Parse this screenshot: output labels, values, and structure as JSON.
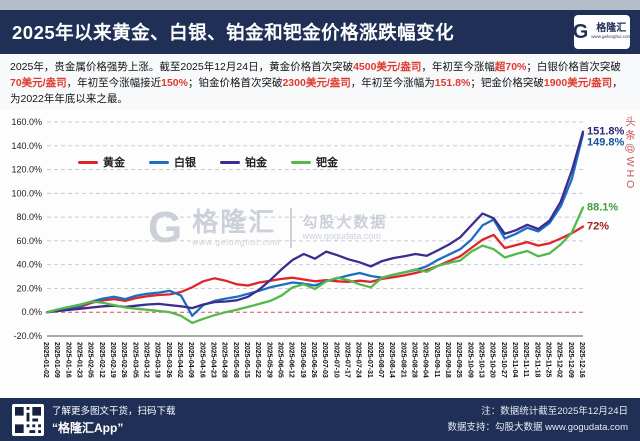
{
  "header": {
    "title": "2025年以来黄金、白银、铂金和钯金价格涨跌幅变化",
    "logo": {
      "letter": "G",
      "name": "格隆汇",
      "site": "www.gelonghui.com"
    }
  },
  "description": {
    "segments": [
      {
        "text": "2025年，贵金属价格强势上涨。截至2025年12月24日，黄金价格首次突破",
        "highlight": false
      },
      {
        "text": "4500美元/盎司",
        "highlight": true
      },
      {
        "text": "，年初至今涨幅",
        "highlight": false
      },
      {
        "text": "超70%",
        "highlight": true
      },
      {
        "text": "；白银价格首次突破",
        "highlight": false
      },
      {
        "text": "70美元/盎司",
        "highlight": true
      },
      {
        "text": "，年初至今涨幅接近",
        "highlight": false
      },
      {
        "text": "150%",
        "highlight": true
      },
      {
        "text": "；铂金价格首次突破",
        "highlight": false
      },
      {
        "text": "2300美元/盎司",
        "highlight": true
      },
      {
        "text": "，年初至今涨幅为",
        "highlight": false
      },
      {
        "text": "151.8%",
        "highlight": true
      },
      {
        "text": "；钯金价格突破",
        "highlight": false
      },
      {
        "text": "1900美元/盎司",
        "highlight": true
      },
      {
        "text": "，为2022年年底以来之最。",
        "highlight": false
      }
    ]
  },
  "chart_data": {
    "type": "line",
    "title": "",
    "xlabel": "",
    "ylabel": "",
    "ylim": [
      -20,
      160
    ],
    "yticks": [
      -20,
      0,
      20,
      40,
      60,
      80,
      100,
      120,
      140,
      160
    ],
    "ytick_suffix": "%",
    "grid": "horizontal dashed",
    "zero_line": "dashed red",
    "zero_line_color": "#d05555",
    "legend_position": "top-left inside",
    "categories": [
      "2025-01-02",
      "2025-01-09",
      "2025-01-16",
      "2025-01-23",
      "2025-02-05",
      "2025-02-12",
      "2025-02-19",
      "2025-02-26",
      "2025-03-05",
      "2025-03-12",
      "2025-03-19",
      "2025-03-26",
      "2025-04-02",
      "2025-04-09",
      "2025-04-16",
      "2025-04-23",
      "2025-04-28",
      "2025-05-08",
      "2025-05-15",
      "2025-05-22",
      "2025-05-29",
      "2025-06-05",
      "2025-06-12",
      "2025-06-19",
      "2025-06-26",
      "2025-07-03",
      "2025-07-10",
      "2025-07-17",
      "2025-07-24",
      "2025-07-31",
      "2025-08-07",
      "2025-08-14",
      "2025-08-21",
      "2025-08-28",
      "2025-09-04",
      "2025-09-11",
      "2025-09-18",
      "2025-09-25",
      "2025-10-09",
      "2025-10-13",
      "2025-10-20",
      "2025-10-27",
      "2025-11-04",
      "2025-11-11",
      "2025-11-18",
      "2025-11-25",
      "2025-12-02",
      "2025-12-09",
      "2025-12-16"
    ],
    "series": [
      {
        "name": "黄金",
        "color": "#e02428",
        "values": [
          0,
          1.5,
          3,
          4.5,
          8,
          10,
          11,
          9.5,
          12,
          13.5,
          14.5,
          15,
          17,
          21,
          26,
          28.5,
          26.5,
          23.5,
          22.5,
          25,
          26.5,
          28,
          29,
          27.5,
          26,
          27,
          26,
          25.5,
          26.5,
          25.5,
          28,
          29.5,
          31,
          33,
          35.5,
          39,
          43,
          47,
          54,
          61,
          65,
          54,
          56.5,
          59,
          56,
          58,
          62,
          66.5,
          72
        ]
      },
      {
        "name": "白银",
        "color": "#1b6ec2",
        "values": [
          0,
          2,
          4,
          5.5,
          9,
          11.5,
          13,
          11,
          14,
          15.5,
          16.5,
          18,
          14,
          -3,
          6,
          9.5,
          11.5,
          13,
          15.5,
          18,
          21,
          23,
          25,
          24,
          22.5,
          26,
          28.5,
          31,
          33,
          30.5,
          29,
          31.5,
          33.5,
          35.5,
          38.5,
          44,
          48.5,
          53,
          61,
          73,
          78,
          62,
          66,
          71,
          68,
          75,
          89,
          112,
          149.8
        ]
      },
      {
        "name": "铂金",
        "color": "#3a2d8f",
        "values": [
          0,
          1,
          2,
          3,
          4,
          5,
          5.5,
          4.5,
          5.5,
          6.5,
          7,
          6,
          5,
          3.5,
          6.5,
          8.5,
          9,
          10,
          13,
          19,
          27,
          36,
          44,
          49,
          45,
          51,
          48,
          44.5,
          42,
          38.5,
          43,
          45.5,
          47,
          49,
          47.5,
          52,
          57,
          63,
          73,
          83,
          79,
          66,
          69,
          73.5,
          70,
          77,
          93,
          119,
          151.8
        ]
      },
      {
        "name": "钯金",
        "color": "#55b84c",
        "values": [
          0,
          2.5,
          4.5,
          6.5,
          9,
          8,
          6,
          4,
          3,
          2,
          1,
          0,
          -3,
          -9,
          -5.5,
          -2.5,
          0,
          2,
          4.5,
          7,
          9.5,
          14,
          21,
          23.5,
          19.5,
          26,
          29,
          27,
          23.5,
          21,
          29,
          31.5,
          33.5,
          36,
          34,
          39,
          41.5,
          43.5,
          51,
          56,
          53,
          46,
          49,
          51.5,
          47,
          49.5,
          57,
          67,
          88.1
        ]
      }
    ],
    "end_labels": [
      {
        "text": "151.8%",
        "value": 151.8,
        "color": "#2e2578"
      },
      {
        "text": "149.8%",
        "value": 149.8,
        "color": "#15529e"
      },
      {
        "text": "88.1%",
        "value": 88.1,
        "color": "#3f9e3d"
      },
      {
        "text": "72%",
        "value": 72,
        "color": "#a01f1f"
      }
    ]
  },
  "watermark": {
    "brand_letter": "G",
    "brand": "格隆汇",
    "brand_site": "www.gelonghui.com",
    "subtitle": "勾股大数据",
    "site": "www.gogudata.com",
    "side_text": "头条@WHO"
  },
  "footer": {
    "qr_caption_line1": "了解更多图文干货，扫码下载",
    "qr_caption_line2": "“格隆汇App”",
    "note_line1": "注：数据统计截至2025年12月24日",
    "note_line2": "数据支持：勾股大数据 www.gogudata.com"
  }
}
